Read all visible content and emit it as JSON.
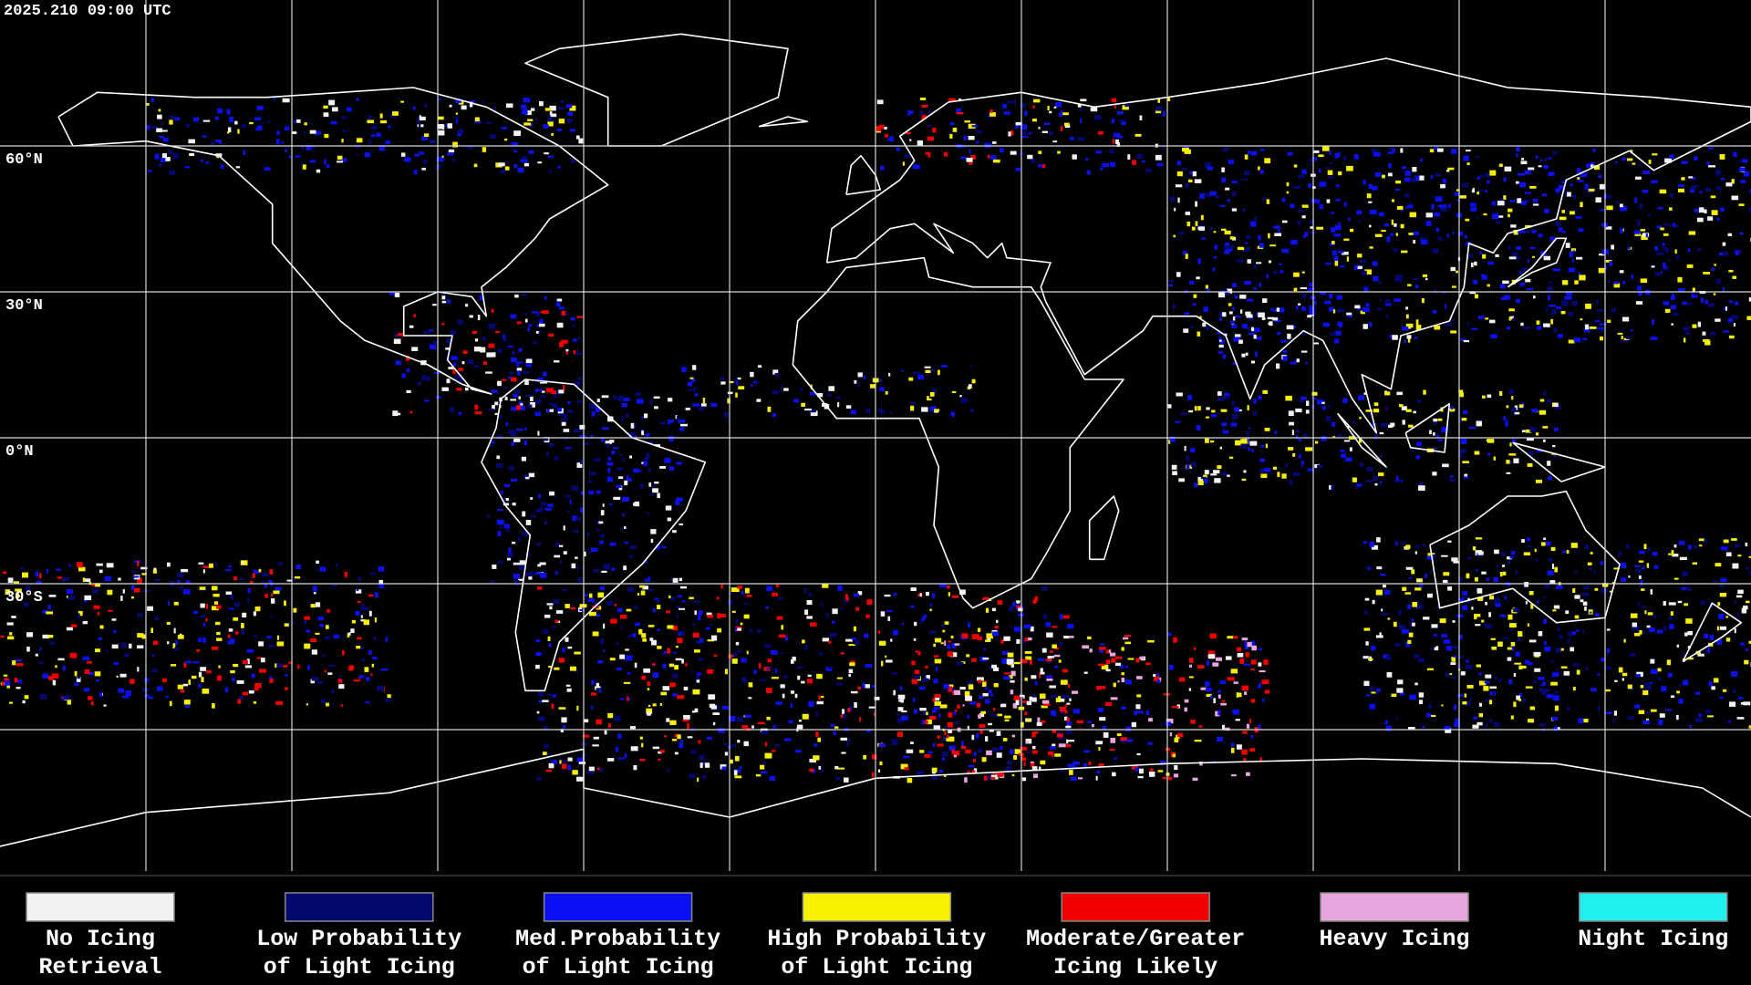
{
  "timestamp": "2025.210 09:00 UTC",
  "latitude_labels": [
    "60°N",
    "30°N",
    "0°N",
    "30°S"
  ],
  "legend": [
    {
      "color": "#f2f2f2",
      "label_lines": [
        "No Icing",
        "Retrieval"
      ]
    },
    {
      "color": "#04076e",
      "label_lines": [
        "Low Probability",
        "of Light Icing"
      ]
    },
    {
      "color": "#0a10f2",
      "label_lines": [
        "Med.Probability",
        "of Light Icing"
      ]
    },
    {
      "color": "#f7f000",
      "label_lines": [
        "High Probability",
        "of Light Icing"
      ]
    },
    {
      "color": "#f20000",
      "label_lines": [
        "Moderate/Greater",
        "Icing Likely"
      ]
    },
    {
      "color": "#e8a6e0",
      "label_lines": [
        "Heavy Icing"
      ]
    },
    {
      "color": "#1ff0ee",
      "label_lines": [
        "Night Icing"
      ]
    }
  ]
}
